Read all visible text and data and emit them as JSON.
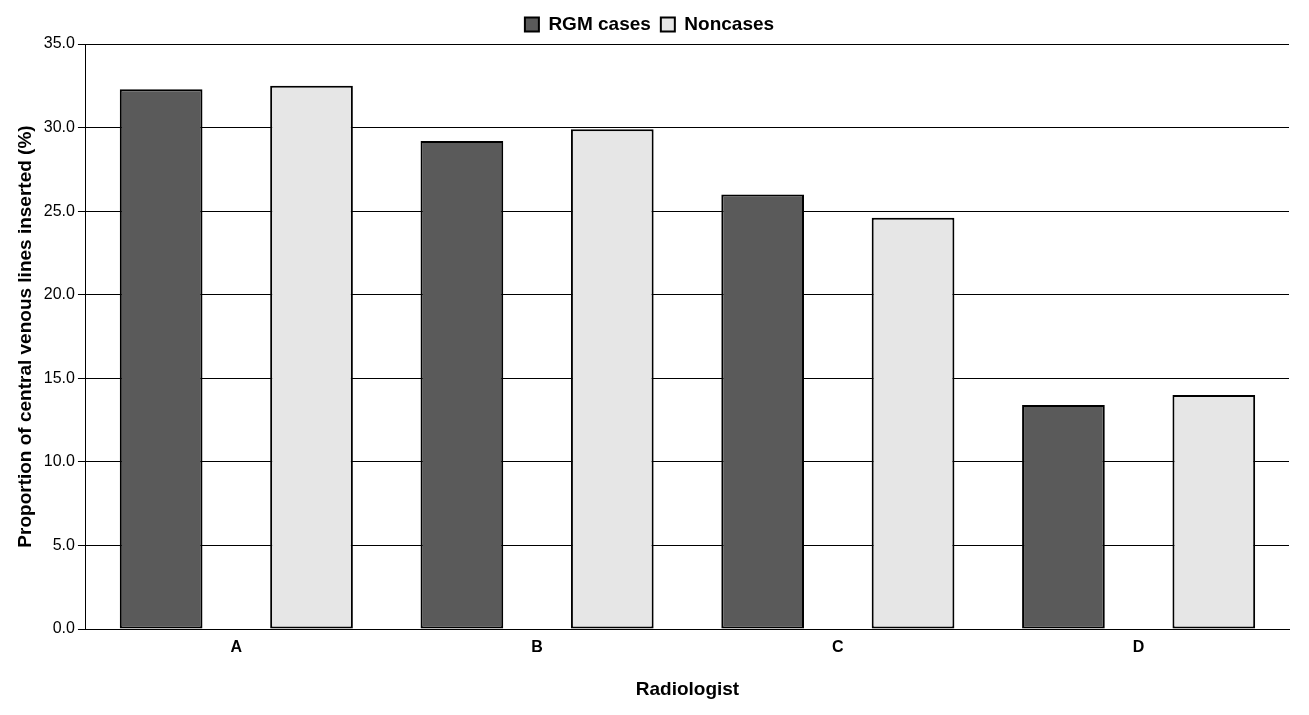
{
  "chart_data": {
    "type": "bar",
    "xlabel": "Radiologist",
    "ylabel": "Proportion of central venous lines inserted (%)",
    "categories": [
      "A",
      "B",
      "C",
      "D"
    ],
    "series": [
      {
        "name": "RGM cases",
        "color": "#5a5a5a",
        "values": [
          32.3,
          29.2,
          26.0,
          13.4
        ]
      },
      {
        "name": "Noncases",
        "color": "#e6e6e6",
        "values": [
          32.5,
          29.9,
          24.6,
          14.0
        ]
      }
    ],
    "ylim": [
      0,
      35
    ],
    "yticks": [
      {
        "value": 0,
        "label": "0.0"
      },
      {
        "value": 5,
        "label": "5.0"
      },
      {
        "value": 10,
        "label": "10.0"
      },
      {
        "value": 15,
        "label": "15.0"
      },
      {
        "value": 20,
        "label": "20.0"
      },
      {
        "value": 25,
        "label": "25.0"
      },
      {
        "value": 30,
        "label": "30.0"
      },
      {
        "value": 35,
        "label": "35.0"
      }
    ],
    "grid": "y",
    "legend": "top"
  }
}
